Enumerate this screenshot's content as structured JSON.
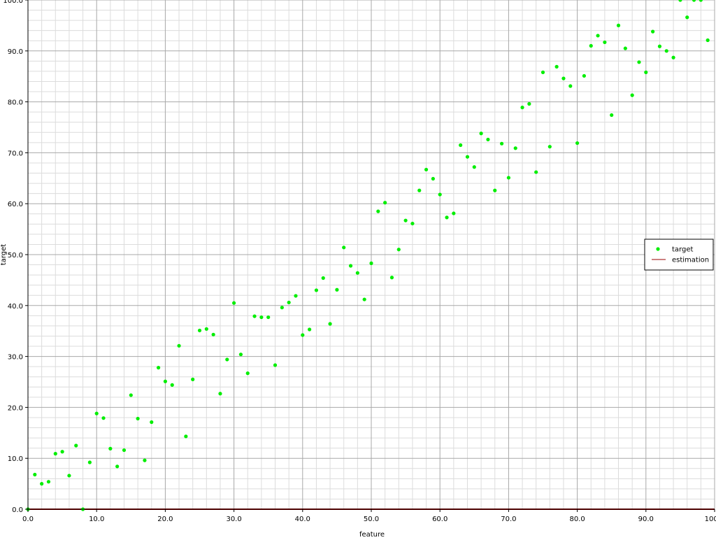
{
  "chart_data": {
    "type": "scatter",
    "title": "",
    "xlabel": "feature",
    "ylabel": "target",
    "xlim": [
      0,
      100
    ],
    "ylim": [
      0,
      100
    ],
    "xticks": [
      "0.0",
      "10.0",
      "20.0",
      "30.0",
      "40.0",
      "50.0",
      "60.0",
      "70.0",
      "80.0",
      "90.0",
      "100.0"
    ],
    "yticks": [
      "0.0",
      "10.0",
      "20.0",
      "30.0",
      "40.0",
      "50.0",
      "60.0",
      "70.0",
      "80.0",
      "90.0",
      "100.0"
    ],
    "grid": true,
    "legend_position": "right",
    "series": [
      {
        "name": "target",
        "type": "scatter",
        "color": "#00ee00",
        "x": [
          0,
          1,
          2,
          3,
          4,
          5,
          6,
          7,
          8,
          9,
          10,
          11,
          12,
          13,
          14,
          15,
          16,
          17,
          18,
          19,
          20,
          21,
          22,
          23,
          24,
          25,
          26,
          27,
          28,
          29,
          30,
          31,
          32,
          33,
          34,
          35,
          36,
          37,
          38,
          39,
          40,
          41,
          42,
          43,
          44,
          45,
          46,
          47,
          48,
          49,
          50,
          51,
          52,
          53,
          54,
          55,
          56,
          57,
          58,
          59,
          60,
          61,
          62,
          63,
          64,
          65,
          66,
          67,
          68,
          69,
          70,
          71,
          72,
          73,
          74,
          75,
          76,
          77,
          78,
          79,
          80,
          81,
          82,
          83,
          84,
          85,
          86,
          87,
          88,
          89,
          90,
          91,
          92,
          93,
          94,
          95,
          96,
          97,
          98,
          99
        ],
        "y": [
          0.0,
          6.8,
          5.0,
          5.4,
          10.9,
          11.3,
          6.6,
          12.5,
          0.0,
          9.2,
          18.8,
          17.9,
          11.9,
          8.4,
          11.6,
          22.4,
          17.8,
          9.6,
          17.1,
          27.8,
          25.1,
          24.4,
          32.1,
          14.3,
          25.5,
          35.1,
          35.4,
          34.3,
          22.7,
          29.4,
          40.5,
          30.4,
          26.7,
          37.9,
          37.7,
          37.7,
          28.3,
          39.6,
          40.6,
          41.9,
          34.2,
          35.3,
          43.0,
          45.4,
          36.4,
          43.1,
          51.4,
          47.8,
          46.4,
          41.2,
          48.3,
          58.5,
          60.2,
          45.5,
          51.0,
          56.7,
          56.1,
          62.6,
          66.7,
          64.9,
          61.8,
          57.3,
          58.1,
          71.5,
          69.2,
          67.2,
          73.8,
          72.6,
          62.6,
          71.8,
          65.1,
          70.9,
          78.9,
          79.6,
          66.2,
          85.8,
          71.2,
          86.9,
          84.6,
          83.1,
          71.9,
          85.1,
          91.0,
          93.0,
          91.7,
          77.4,
          95.0,
          90.5,
          81.3,
          87.8,
          85.8,
          93.8,
          90.9,
          90.0,
          88.7,
          100.0,
          96.6,
          100.0,
          100.0,
          92.1
        ]
      },
      {
        "name": "estimation",
        "type": "line",
        "color": "#990000",
        "x": [
          0,
          100
        ],
        "y": [
          0.0,
          0.0
        ]
      }
    ]
  }
}
